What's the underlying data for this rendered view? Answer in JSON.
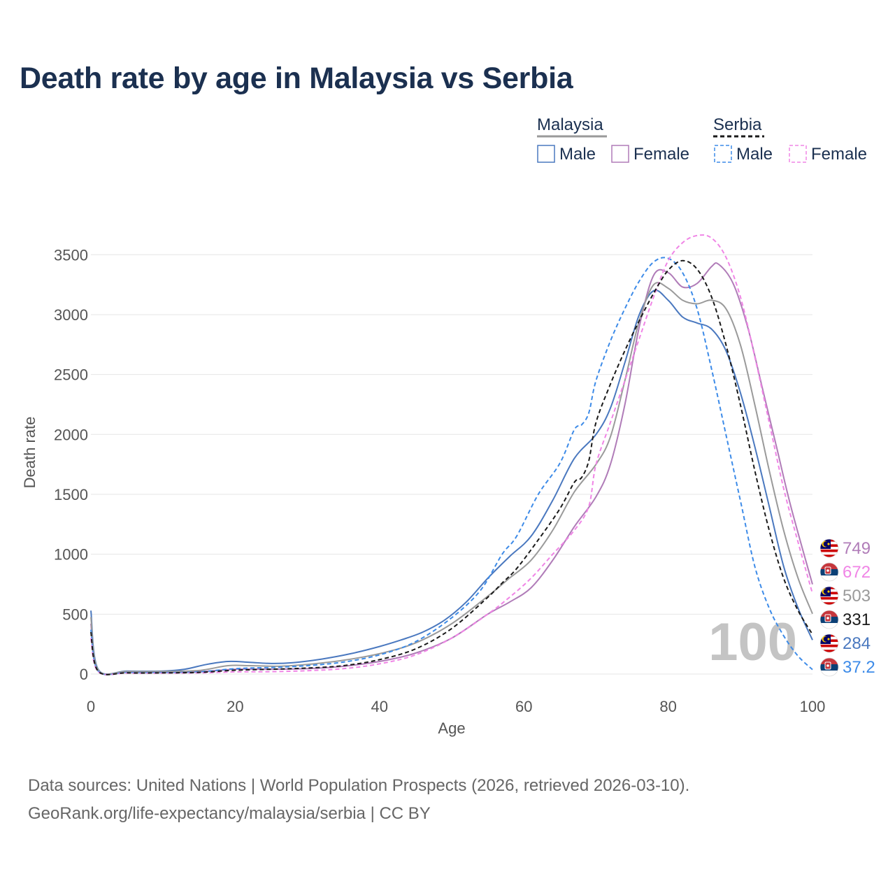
{
  "title": "Death rate by age in Malaysia vs Serbia",
  "legend": {
    "groups": [
      {
        "name": "Malaysia",
        "line_style": "solid",
        "color": "#9a9a9a"
      },
      {
        "name": "Serbia",
        "line_style": "dashed",
        "color": "#1a1a1a"
      }
    ],
    "items": [
      {
        "label": "Male",
        "group": "Malaysia",
        "color": "#4a78bf",
        "dashed": false
      },
      {
        "label": "Female",
        "group": "Malaysia",
        "color": "#b07cb8",
        "dashed": false
      },
      {
        "label": "Male",
        "group": "Serbia",
        "color": "#3d8be8",
        "dashed": true
      },
      {
        "label": "Female",
        "group": "Serbia",
        "color": "#f085e6",
        "dashed": true
      }
    ]
  },
  "chart_data": {
    "type": "line",
    "xlabel": "Age",
    "ylabel": "Death rate",
    "xlim": [
      0,
      100
    ],
    "ylim": [
      0,
      3700
    ],
    "x_ticks": [
      0,
      20,
      40,
      60,
      80,
      100
    ],
    "y_ticks": [
      0,
      500,
      1000,
      1500,
      2000,
      2500,
      3000,
      3500
    ],
    "grid": true,
    "series": [
      {
        "name": "Malaysia Male",
        "color": "#4a78bf",
        "dashed": false,
        "points": [
          [
            0,
            530
          ],
          [
            1,
            40
          ],
          [
            5,
            25
          ],
          [
            10,
            25
          ],
          [
            13,
            40
          ],
          [
            16,
            80
          ],
          [
            19,
            105
          ],
          [
            22,
            98
          ],
          [
            25,
            88
          ],
          [
            28,
            95
          ],
          [
            32,
            125
          ],
          [
            36,
            170
          ],
          [
            40,
            230
          ],
          [
            43,
            285
          ],
          [
            46,
            350
          ],
          [
            49,
            450
          ],
          [
            52,
            600
          ],
          [
            55,
            800
          ],
          [
            58,
            980
          ],
          [
            61,
            1150
          ],
          [
            64,
            1450
          ],
          [
            67,
            1800
          ],
          [
            70,
            2000
          ],
          [
            72,
            2220
          ],
          [
            74,
            2600
          ],
          [
            76,
            3000
          ],
          [
            78,
            3200
          ],
          [
            80,
            3120
          ],
          [
            82,
            2980
          ],
          [
            84,
            2930
          ],
          [
            86,
            2880
          ],
          [
            88,
            2700
          ],
          [
            90,
            2350
          ],
          [
            92,
            1900
          ],
          [
            94,
            1400
          ],
          [
            96,
            900
          ],
          [
            98,
            550
          ],
          [
            100,
            284
          ]
        ]
      },
      {
        "name": "Malaysia Female",
        "color": "#b07cb8",
        "dashed": false,
        "points": [
          [
            0,
            420
          ],
          [
            1,
            30
          ],
          [
            5,
            18
          ],
          [
            10,
            18
          ],
          [
            15,
            20
          ],
          [
            20,
            40
          ],
          [
            25,
            40
          ],
          [
            30,
            45
          ],
          [
            35,
            65
          ],
          [
            40,
            105
          ],
          [
            45,
            175
          ],
          [
            50,
            300
          ],
          [
            55,
            500
          ],
          [
            58,
            600
          ],
          [
            61,
            720
          ],
          [
            64,
            950
          ],
          [
            67,
            1230
          ],
          [
            70,
            1480
          ],
          [
            72,
            1750
          ],
          [
            74,
            2250
          ],
          [
            76,
            2900
          ],
          [
            78,
            3330
          ],
          [
            80,
            3350
          ],
          [
            82,
            3230
          ],
          [
            84,
            3260
          ],
          [
            86,
            3400
          ],
          [
            87,
            3420
          ],
          [
            89,
            3260
          ],
          [
            91,
            2900
          ],
          [
            93,
            2400
          ],
          [
            95,
            1900
          ],
          [
            97,
            1400
          ],
          [
            100,
            749
          ]
        ]
      },
      {
        "name": "Malaysia (total)",
        "color": "#9a9a9a",
        "dashed": false,
        "points": [
          [
            0,
            475
          ],
          [
            1,
            35
          ],
          [
            5,
            22
          ],
          [
            10,
            22
          ],
          [
            15,
            30
          ],
          [
            19,
            70
          ],
          [
            22,
            70
          ],
          [
            26,
            65
          ],
          [
            30,
            80
          ],
          [
            35,
            115
          ],
          [
            40,
            170
          ],
          [
            45,
            260
          ],
          [
            50,
            420
          ],
          [
            55,
            650
          ],
          [
            58,
            800
          ],
          [
            61,
            950
          ],
          [
            64,
            1200
          ],
          [
            67,
            1520
          ],
          [
            70,
            1750
          ],
          [
            72,
            1980
          ],
          [
            74,
            2450
          ],
          [
            76,
            2950
          ],
          [
            78,
            3250
          ],
          [
            80,
            3220
          ],
          [
            82,
            3120
          ],
          [
            84,
            3090
          ],
          [
            86,
            3120
          ],
          [
            88,
            3050
          ],
          [
            90,
            2750
          ],
          [
            92,
            2250
          ],
          [
            94,
            1700
          ],
          [
            96,
            1200
          ],
          [
            98,
            800
          ],
          [
            100,
            503
          ]
        ]
      },
      {
        "name": "Serbia Male",
        "color": "#3d8be8",
        "dashed": true,
        "points": [
          [
            0,
            370
          ],
          [
            1,
            25
          ],
          [
            5,
            12
          ],
          [
            10,
            12
          ],
          [
            15,
            18
          ],
          [
            20,
            45
          ],
          [
            25,
            55
          ],
          [
            30,
            70
          ],
          [
            35,
            100
          ],
          [
            40,
            160
          ],
          [
            45,
            270
          ],
          [
            50,
            470
          ],
          [
            54,
            700
          ],
          [
            57,
            1000
          ],
          [
            59,
            1150
          ],
          [
            62,
            1500
          ],
          [
            65,
            1760
          ],
          [
            67,
            2040
          ],
          [
            68,
            2080
          ],
          [
            69,
            2180
          ],
          [
            70,
            2450
          ],
          [
            72,
            2780
          ],
          [
            74,
            3050
          ],
          [
            76,
            3280
          ],
          [
            78,
            3440
          ],
          [
            80,
            3470
          ],
          [
            82,
            3350
          ],
          [
            84,
            3050
          ],
          [
            86,
            2550
          ],
          [
            88,
            2000
          ],
          [
            90,
            1450
          ],
          [
            92,
            900
          ],
          [
            94,
            550
          ],
          [
            96,
            320
          ],
          [
            98,
            150
          ],
          [
            100,
            37.2
          ]
        ]
      },
      {
        "name": "Serbia Female",
        "color": "#f085e6",
        "dashed": true,
        "points": [
          [
            0,
            300
          ],
          [
            1,
            20
          ],
          [
            5,
            8
          ],
          [
            10,
            8
          ],
          [
            15,
            10
          ],
          [
            20,
            18
          ],
          [
            25,
            20
          ],
          [
            30,
            28
          ],
          [
            35,
            45
          ],
          [
            40,
            85
          ],
          [
            45,
            160
          ],
          [
            50,
            300
          ],
          [
            55,
            500
          ],
          [
            58,
            640
          ],
          [
            61,
            800
          ],
          [
            64,
            1000
          ],
          [
            67,
            1200
          ],
          [
            69,
            1400
          ],
          [
            70,
            1750
          ],
          [
            72,
            2100
          ],
          [
            74,
            2450
          ],
          [
            76,
            2800
          ],
          [
            78,
            3150
          ],
          [
            80,
            3450
          ],
          [
            82,
            3600
          ],
          [
            84,
            3660
          ],
          [
            86,
            3640
          ],
          [
            88,
            3480
          ],
          [
            90,
            3150
          ],
          [
            92,
            2650
          ],
          [
            94,
            2100
          ],
          [
            96,
            1550
          ],
          [
            98,
            1100
          ],
          [
            100,
            672
          ]
        ]
      },
      {
        "name": "Serbia (total)",
        "color": "#1a1a1a",
        "dashed": true,
        "points": [
          [
            0,
            350
          ],
          [
            1,
            24
          ],
          [
            5,
            10
          ],
          [
            10,
            10
          ],
          [
            15,
            14
          ],
          [
            20,
            32
          ],
          [
            25,
            40
          ],
          [
            30,
            50
          ],
          [
            35,
            70
          ],
          [
            40,
            120
          ],
          [
            45,
            210
          ],
          [
            50,
            380
          ],
          [
            55,
            640
          ],
          [
            57,
            760
          ],
          [
            59,
            880
          ],
          [
            62,
            1120
          ],
          [
            65,
            1380
          ],
          [
            67,
            1600
          ],
          [
            68,
            1640
          ],
          [
            69,
            1780
          ],
          [
            70,
            2100
          ],
          [
            72,
            2420
          ],
          [
            74,
            2700
          ],
          [
            76,
            2950
          ],
          [
            78,
            3180
          ],
          [
            80,
            3370
          ],
          [
            82,
            3450
          ],
          [
            84,
            3380
          ],
          [
            86,
            3150
          ],
          [
            88,
            2750
          ],
          [
            90,
            2250
          ],
          [
            92,
            1700
          ],
          [
            94,
            1200
          ],
          [
            96,
            800
          ],
          [
            98,
            530
          ],
          [
            100,
            331
          ]
        ]
      }
    ],
    "end_labels": [
      {
        "text": "749",
        "color": "#b07cb8",
        "country": "Malaysia"
      },
      {
        "text": "672",
        "color": "#f085e6",
        "country": "Serbia"
      },
      {
        "text": "503",
        "color": "#9a9a9a",
        "country": "Malaysia"
      },
      {
        "text": "331",
        "color": "#1a1a1a",
        "country": "Serbia"
      },
      {
        "text": "284",
        "color": "#4a78bf",
        "country": "Malaysia"
      },
      {
        "text": "37.2",
        "color": "#3d8be8",
        "country": "Serbia"
      }
    ],
    "watermark": "100"
  },
  "footer": {
    "line1": "Data sources: United Nations | World Population Prospects (2026, retrieved 2026-03-10).",
    "line2": "GeoRank.org/life-expectancy/malaysia/serbia | CC BY"
  }
}
